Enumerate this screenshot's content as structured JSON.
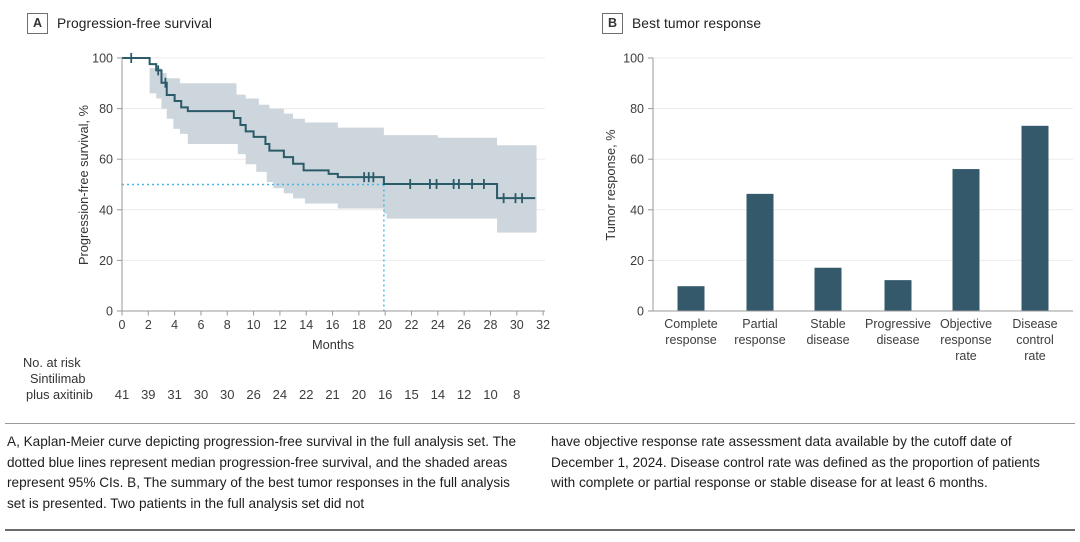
{
  "colors": {
    "curve": "#2b5a69",
    "bar": "#34596a",
    "ci_band": "#c9d2d9",
    "median_line": "#46b7e3",
    "grid": "#ebebeb",
    "axis": "#999999",
    "tick_text": "#3d3d3d",
    "label_text": "#333333"
  },
  "panel_a": {
    "label": "A",
    "title": "Progression-free survival",
    "ylabel": "Progression-free survival, %",
    "xlabel": "Months",
    "risk_header": "No. at risk",
    "risk_group_line1": "Sintilimab",
    "risk_group_line2": "plus axitinib"
  },
  "panel_b": {
    "label": "B",
    "title": "Best tumor response",
    "ylabel": "Tumor response, %"
  },
  "caption": {
    "left": "A, Kaplan-Meier curve depicting progression-free survival in the full analysis set. The dotted blue lines represent median progression-free survival, and the shaded areas represent 95% CIs. B, The summary of the best tumor responses in the full analysis set is presented. Two patients in the full analysis set did not",
    "right": "have objective response rate assessment data available by the cutoff date of December 1, 2024. Disease control rate was defined as the proportion of patients with complete or partial response or stable disease for at least 6 months."
  },
  "chart_data": [
    {
      "type": "line",
      "subtype": "kaplan-meier-step",
      "title": "Progression-free survival",
      "xlabel": "Months",
      "ylabel": "Progression-free survival, %",
      "xlim": [
        0,
        32
      ],
      "ylim": [
        0,
        100
      ],
      "xticks": [
        0,
        2,
        4,
        6,
        8,
        10,
        12,
        14,
        16,
        18,
        20,
        22,
        24,
        26,
        28,
        30,
        32
      ],
      "yticks": [
        0,
        20,
        40,
        60,
        80,
        100
      ],
      "grid": "horizontal",
      "legend": "none",
      "median_pfs_months": 19.9,
      "median_line_y": 50,
      "steps": [
        [
          0,
          100
        ],
        [
          2.1,
          97.6
        ],
        [
          2.6,
          95.1
        ],
        [
          3.0,
          90.2
        ],
        [
          3.4,
          85.4
        ],
        [
          4.0,
          83
        ],
        [
          4.5,
          80.5
        ],
        [
          5.0,
          79
        ],
        [
          8.5,
          76.3
        ],
        [
          9.0,
          73.5
        ],
        [
          9.4,
          71
        ],
        [
          10.0,
          68.8
        ],
        [
          10.9,
          66
        ],
        [
          11.2,
          63.4
        ],
        [
          12.3,
          60.8
        ],
        [
          13.0,
          58.2
        ],
        [
          13.8,
          55.6
        ],
        [
          15.7,
          54.2
        ],
        [
          16.4,
          52.9
        ],
        [
          19.9,
          50.2
        ],
        [
          28.5,
          44.6
        ]
      ],
      "end_x": 31.4,
      "censor_marks": [
        [
          0.7,
          100
        ],
        [
          2.75,
          95.1
        ],
        [
          3.3,
          90.2
        ],
        [
          18.4,
          52.9
        ],
        [
          18.75,
          52.9
        ],
        [
          19.1,
          52.9
        ],
        [
          21.9,
          50.2
        ],
        [
          23.4,
          50.2
        ],
        [
          23.9,
          50.2
        ],
        [
          25.2,
          50.2
        ],
        [
          25.6,
          50.2
        ],
        [
          26.6,
          50.2
        ],
        [
          27.5,
          50.2
        ],
        [
          29.0,
          44.6
        ],
        [
          29.9,
          44.6
        ],
        [
          30.4,
          44.6
        ]
      ],
      "ci_upper": [
        [
          2.1,
          96
        ],
        [
          3.0,
          94
        ],
        [
          3.4,
          92
        ],
        [
          4.4,
          90
        ],
        [
          8.7,
          85.5
        ],
        [
          9.4,
          84
        ],
        [
          10.4,
          81.5
        ],
        [
          11.2,
          80
        ],
        [
          12.3,
          78
        ],
        [
          13.0,
          76
        ],
        [
          13.9,
          74.5
        ],
        [
          16.4,
          72.5
        ],
        [
          19.9,
          69.5
        ],
        [
          24.0,
          68.5
        ],
        [
          28.5,
          65.5
        ]
      ],
      "ci_lower": [
        [
          2.1,
          86
        ],
        [
          2.6,
          84
        ],
        [
          3.0,
          80
        ],
        [
          3.4,
          76
        ],
        [
          3.9,
          72
        ],
        [
          4.4,
          70
        ],
        [
          5.0,
          66
        ],
        [
          8.8,
          62
        ],
        [
          9.4,
          58
        ],
        [
          10.2,
          55
        ],
        [
          11.0,
          51
        ],
        [
          11.5,
          48.5
        ],
        [
          12.3,
          46.5
        ],
        [
          13.0,
          44.5
        ],
        [
          13.9,
          42.5
        ],
        [
          16.4,
          40.5
        ],
        [
          19.9,
          38.5
        ],
        [
          20.1,
          36.5
        ],
        [
          28.5,
          31
        ]
      ],
      "ci_end_x": 31.5,
      "no_at_risk": {
        "group": "Sintilimab plus axitinib",
        "months": [
          0,
          2,
          4,
          6,
          8,
          10,
          12,
          14,
          16,
          18,
          20,
          22,
          24,
          26,
          28,
          30
        ],
        "counts": [
          41,
          39,
          31,
          30,
          30,
          26,
          24,
          22,
          21,
          20,
          16,
          15,
          14,
          12,
          10,
          8
        ]
      }
    },
    {
      "type": "bar",
      "title": "Best tumor response",
      "xlabel": "",
      "ylabel": "Tumor response, %",
      "ylim": [
        0,
        100
      ],
      "yticks": [
        0,
        20,
        40,
        60,
        80,
        100
      ],
      "grid": "horizontal",
      "legend": "none",
      "categories": [
        [
          "Complete",
          "response"
        ],
        [
          "Partial",
          "response"
        ],
        [
          "Stable",
          "disease"
        ],
        [
          "Progressive",
          "disease"
        ],
        [
          "Objective",
          "response",
          "rate"
        ],
        [
          "Disease",
          "control",
          "rate"
        ]
      ],
      "category_keys": [
        "complete-response",
        "partial-response",
        "stable-disease",
        "progressive-disease",
        "objective-response-rate",
        "disease-control-rate"
      ],
      "values": [
        9.8,
        46.3,
        17.1,
        12.2,
        56.1,
        73.2
      ]
    }
  ]
}
